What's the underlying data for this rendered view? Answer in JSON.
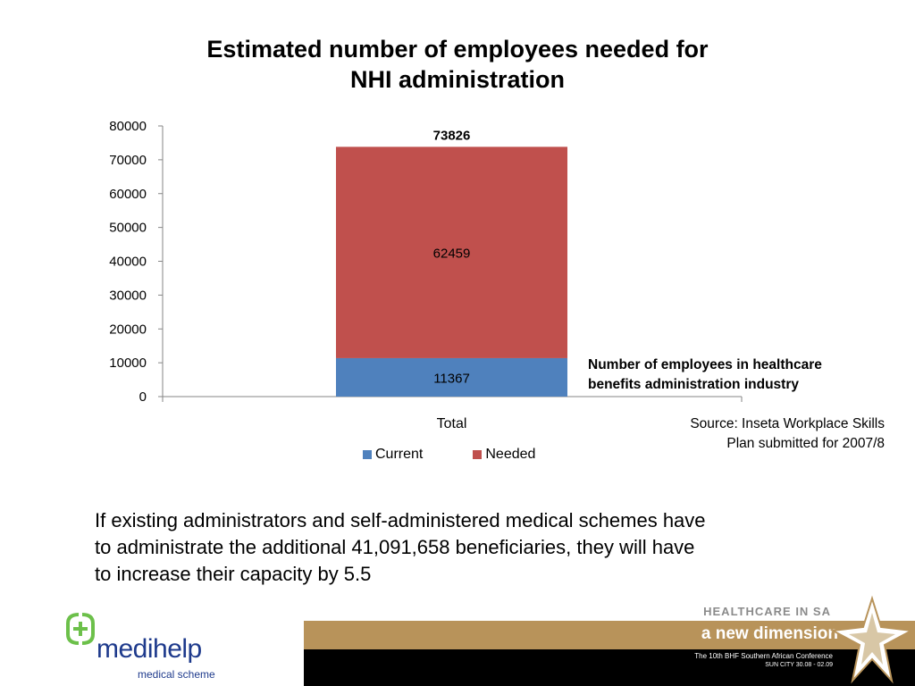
{
  "title": {
    "line1": "Estimated number of employees needed for",
    "line2": "NHI administration"
  },
  "chart_data": {
    "type": "bar",
    "stacked": true,
    "categories": [
      "Total"
    ],
    "series": [
      {
        "name": "Current",
        "values": [
          11367
        ],
        "color": "#4f81bd"
      },
      {
        "name": "Needed",
        "values": [
          62459
        ],
        "color": "#c0504d"
      }
    ],
    "total_labels": [
      73826
    ],
    "ylim": [
      0,
      80000
    ],
    "yticks": [
      0,
      10000,
      20000,
      30000,
      40000,
      50000,
      60000,
      70000,
      80000
    ],
    "grid": false,
    "legend_position": "bottom"
  },
  "annotation": {
    "line1": "Number of employees in healthcare",
    "line2": "benefits administration industry"
  },
  "source": {
    "line1": "Source: Inseta Workplace Skills",
    "line2": "Plan submitted for 2007/8"
  },
  "body": {
    "line1": "If existing administrators and self-administered medical schemes have",
    "line2": "to administrate the additional 41,091,658 beneficiaries, they will have",
    "line3": "to increase their capacity by 5.5"
  },
  "logo": {
    "name": "medihelp",
    "subtitle": "medical scheme",
    "color": "#1e3a8c",
    "accent": "#6cc04a"
  },
  "banner": {
    "top": "HEALTHCARE IN SA",
    "main": "a new dimension",
    "line1": "The 10th BHF Southern African Conference",
    "line2": "SUN CITY  30.08 - 02.09"
  }
}
